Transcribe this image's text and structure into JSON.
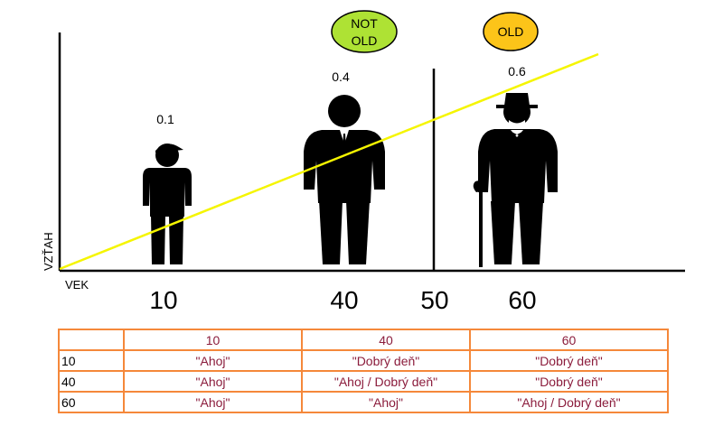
{
  "axes": {
    "ylabel": "VZŤAH",
    "xlabel": "VEK",
    "ticks": [
      "10",
      "40",
      "50",
      "60"
    ]
  },
  "figures": [
    {
      "age": "10",
      "value": "0.1",
      "icon": "child-with-cap-icon"
    },
    {
      "age": "40",
      "value": "0.4",
      "icon": "man-in-suit-icon"
    },
    {
      "age": "60",
      "value": "0.6",
      "icon": "old-man-with-hat-and-cane-icon"
    }
  ],
  "badges": {
    "not_old": {
      "line1": "NOT",
      "line2": "OLD",
      "color": "#aee234"
    },
    "old": {
      "text": "OLD",
      "color": "#fcc419"
    }
  },
  "colors": {
    "trend_line": "#f5f500",
    "table_border": "#f5883a",
    "table_text": "#8b1c3c"
  },
  "table": {
    "columns": [
      "",
      "10",
      "40",
      "60"
    ],
    "rows": [
      {
        "age": "10",
        "cells": [
          "\"Ahoj\"",
          "\"Dobrý deň\"",
          "\"Dobrý deň\""
        ]
      },
      {
        "age": "40",
        "cells": [
          "\"Ahoj\"",
          "\"Ahoj / Dobrý deň\"",
          "\"Dobrý deň\""
        ]
      },
      {
        "age": "60",
        "cells": [
          "\"Ahoj\"",
          "\"Ahoj\"",
          "\"Ahoj / Dobrý deň\""
        ]
      }
    ]
  }
}
